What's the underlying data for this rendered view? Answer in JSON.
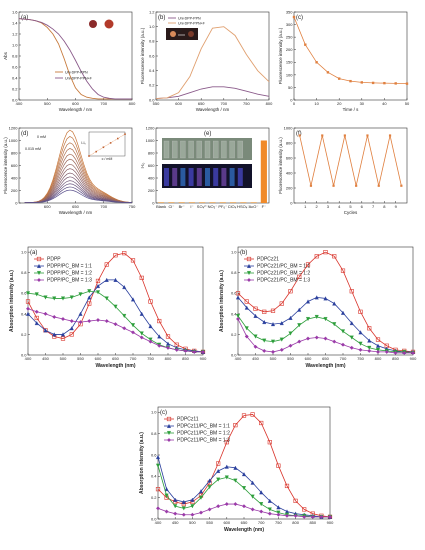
{
  "chart_data": [
    {
      "panel": "(a)",
      "type": "line",
      "xlabel": "Wavelength / nm",
      "ylabel": "Abs",
      "xlim": [
        400,
        800
      ],
      "ylim": [
        0,
        1.6
      ],
      "xticks": [
        400,
        500,
        600,
        700,
        800
      ],
      "yticks": [
        0.0,
        0.2,
        0.4,
        0.6,
        0.8,
        1.0,
        1.2,
        1.4,
        1.6
      ],
      "series": [
        {
          "name": "Uni-DPP-PPN",
          "color": "#c77a3c",
          "x": [
            400,
            420,
            440,
            460,
            480,
            500,
            520,
            540,
            560,
            580,
            600,
            620,
            640,
            660,
            680,
            700,
            720,
            740,
            760,
            780,
            800
          ],
          "y": [
            1.48,
            1.47,
            1.46,
            1.44,
            1.4,
            1.32,
            1.2,
            1.02,
            0.75,
            0.45,
            0.22,
            0.1,
            0.05,
            0.03,
            0.02,
            0.02,
            0.02,
            0.02,
            0.02,
            0.02,
            0.02
          ]
        },
        {
          "name": "Uni-DPP-PPN+F",
          "color": "#8a5a8a",
          "x": [
            400,
            420,
            440,
            460,
            480,
            500,
            520,
            540,
            560,
            580,
            600,
            620,
            640,
            660,
            680,
            700,
            720,
            740,
            760,
            780,
            800
          ],
          "y": [
            1.48,
            1.47,
            1.46,
            1.44,
            1.41,
            1.36,
            1.29,
            1.2,
            1.07,
            0.91,
            0.72,
            0.52,
            0.34,
            0.2,
            0.1,
            0.05,
            0.03,
            0.02,
            0.02,
            0.02,
            0.02
          ]
        }
      ]
    },
    {
      "panel": "(b)",
      "type": "line",
      "xlabel": "Wavelength / nm",
      "ylabel": "Fluorescence intensity (a.u.)",
      "xlim": [
        550,
        800
      ],
      "ylim": [
        0,
        1.2
      ],
      "xticks": [
        550,
        600,
        650,
        700,
        750,
        800
      ],
      "yticks": [
        0.0,
        0.2,
        0.4,
        0.6,
        0.8,
        1.0,
        1.2
      ],
      "series": [
        {
          "name": "Uni-DPP-PPN",
          "color": "#8a5a8a",
          "x": [
            550,
            575,
            600,
            625,
            650,
            675,
            700,
            725,
            750,
            775,
            800
          ],
          "y": [
            0.02,
            0.03,
            0.05,
            0.1,
            0.15,
            0.18,
            0.18,
            0.16,
            0.12,
            0.08,
            0.05
          ]
        },
        {
          "name": "Uni-DPP-PPN+F",
          "color": "#e0a070",
          "x": [
            550,
            575,
            600,
            625,
            650,
            675,
            700,
            725,
            750,
            775,
            800
          ],
          "y": [
            0.02,
            0.03,
            0.1,
            0.32,
            0.7,
            0.98,
            1.0,
            0.88,
            0.62,
            0.4,
            0.25
          ]
        }
      ],
      "annotations": [
        "F",
        "F"
      ]
    },
    {
      "panel": "(c)",
      "type": "scatter",
      "xlabel": "Time / s",
      "ylabel": "Fluorescence intensity (a.u.)",
      "xlim": [
        0,
        50
      ],
      "ylim": [
        0,
        350
      ],
      "xticks": [
        0,
        10,
        20,
        30,
        40,
        50
      ],
      "yticks": [
        0,
        50,
        100,
        150,
        200,
        250,
        300,
        350
      ],
      "series": [
        {
          "name": "",
          "color": "#e08040",
          "x": [
            0,
            5,
            10,
            15,
            20,
            25,
            30,
            35,
            40,
            45,
            50
          ],
          "y": [
            330,
            220,
            150,
            110,
            85,
            75,
            70,
            68,
            67,
            66,
            65
          ]
        }
      ]
    },
    {
      "panel": "(d)",
      "type": "line",
      "xlabel": "Wavelength / nm",
      "ylabel": "Fluorescence intensity (a.u.)",
      "xlim": [
        550,
        750
      ],
      "ylim": [
        0,
        1200
      ],
      "xticks": [
        600,
        650,
        700,
        750
      ],
      "yticks": [
        0,
        200,
        400,
        600,
        800,
        1000,
        1200
      ],
      "peak_x": 640,
      "series_peaks": [
        1150,
        1050,
        950,
        860,
        770,
        690,
        610,
        540,
        470,
        410,
        350,
        300,
        250,
        200
      ],
      "annotations": [
        "0 mM",
        "0.015 mM"
      ],
      "inset": {
        "xlabel": "c / mM",
        "ylabel": "I-I₀",
        "x": [
          0,
          0.003,
          0.006,
          0.009,
          0.012,
          0.015
        ],
        "y": [
          0,
          200,
          400,
          600,
          800,
          1000
        ],
        "xticks": [
          "0",
          "0.005",
          "0.010",
          "0.015"
        ]
      }
    },
    {
      "panel": "(e)",
      "type": "bar",
      "ylabel": "I-I₀",
      "categories": [
        "Blank",
        "Cl⁻",
        "Br⁻",
        "I⁻",
        "SO₄²⁻",
        "NO₃⁻",
        "PF₆⁻",
        "ClO₄⁻",
        "HSO₄⁻",
        "AcO⁻",
        "F⁻"
      ],
      "values": [
        15,
        15,
        15,
        15,
        15,
        15,
        15,
        15,
        15,
        15,
        1000
      ],
      "ylim": [
        0,
        1200
      ],
      "yticks": [
        0,
        200,
        400,
        600,
        800,
        1000,
        1200
      ]
    },
    {
      "panel": "(f)",
      "type": "line",
      "xlabel": "Cycles",
      "ylabel": "Fluorescence intensity (a.u.)",
      "xlim": [
        0,
        10
      ],
      "ylim": [
        0,
        1000
      ],
      "xticks": [
        1,
        2,
        3,
        4,
        5,
        6,
        7,
        8,
        9
      ],
      "yticks": [
        0,
        200,
        400,
        600,
        800,
        1000
      ],
      "series": [
        {
          "name": "",
          "color": "#e08040",
          "x": [
            0.5,
            1.5,
            2.5,
            3.5,
            4.5,
            5.5,
            6.5,
            7.5,
            8.5,
            9.5
          ],
          "y": [
            900,
            230,
            900,
            230,
            900,
            230,
            900,
            230,
            900,
            230
          ]
        }
      ]
    },
    {
      "panel": "(a)",
      "type": "line",
      "xlabel": "Wavelength (nm)",
      "ylabel": "Absorption intensity (a.u.)",
      "xlim": [
        400,
        900
      ],
      "ylim": [
        0,
        1.05
      ],
      "xticks": [
        400,
        450,
        500,
        550,
        600,
        650,
        700,
        750,
        800,
        850,
        900
      ],
      "yticks": [
        0.0,
        0.2,
        0.4,
        0.6,
        0.8,
        1.0
      ],
      "x": [
        400,
        425,
        450,
        475,
        500,
        525,
        550,
        575,
        600,
        625,
        650,
        675,
        700,
        725,
        750,
        775,
        800,
        825,
        850,
        875,
        900
      ],
      "series": [
        {
          "name": "PDPP",
          "color": "#d9342b",
          "marker": "square",
          "y": [
            0.52,
            0.36,
            0.24,
            0.18,
            0.16,
            0.2,
            0.3,
            0.5,
            0.72,
            0.88,
            0.97,
            0.99,
            0.92,
            0.75,
            0.52,
            0.33,
            0.18,
            0.1,
            0.06,
            0.04,
            0.03
          ]
        },
        {
          "name": "PDPP/PC_BM = 1:1",
          "color": "#2a3f9d",
          "marker": "triangle",
          "y": [
            0.4,
            0.31,
            0.24,
            0.2,
            0.2,
            0.26,
            0.4,
            0.56,
            0.67,
            0.73,
            0.73,
            0.66,
            0.54,
            0.4,
            0.28,
            0.18,
            0.11,
            0.07,
            0.05,
            0.04,
            0.03
          ]
        },
        {
          "name": "PDPP/PC_BM = 1:2",
          "color": "#2c9e3a",
          "marker": "triangle-down",
          "y": [
            0.6,
            0.59,
            0.56,
            0.55,
            0.55,
            0.56,
            0.59,
            0.62,
            0.61,
            0.55,
            0.47,
            0.38,
            0.29,
            0.21,
            0.15,
            0.1,
            0.07,
            0.05,
            0.04,
            0.03,
            0.03
          ]
        },
        {
          "name": "PDPP/PC_BM = 1:3",
          "color": "#9a3aa8",
          "marker": "diamond",
          "y": [
            0.45,
            0.42,
            0.4,
            0.37,
            0.35,
            0.33,
            0.32,
            0.33,
            0.34,
            0.33,
            0.3,
            0.26,
            0.22,
            0.17,
            0.13,
            0.09,
            0.07,
            0.05,
            0.04,
            0.03,
            0.03
          ]
        }
      ]
    },
    {
      "panel": "(b)",
      "type": "line",
      "xlabel": "Wavelength (nm)",
      "ylabel": "Absorption intensity (a.u.)",
      "xlim": [
        400,
        900
      ],
      "ylim": [
        0,
        1.05
      ],
      "xticks": [
        400,
        450,
        500,
        550,
        600,
        650,
        700,
        750,
        800,
        850,
        900
      ],
      "yticks": [
        0.0,
        0.2,
        0.4,
        0.6,
        0.8,
        1.0
      ],
      "x": [
        400,
        425,
        450,
        475,
        500,
        525,
        550,
        575,
        600,
        625,
        650,
        675,
        700,
        725,
        750,
        775,
        800,
        825,
        850,
        875,
        900
      ],
      "series": [
        {
          "name": "PDPCz21",
          "color": "#d9342b",
          "marker": "square",
          "y": [
            0.6,
            0.52,
            0.45,
            0.42,
            0.43,
            0.5,
            0.62,
            0.76,
            0.88,
            0.96,
            1.0,
            0.96,
            0.82,
            0.62,
            0.42,
            0.26,
            0.15,
            0.09,
            0.05,
            0.04,
            0.03
          ]
        },
        {
          "name": "PDPCz21/PC_BM = 1:1",
          "color": "#2a3f9d",
          "marker": "triangle",
          "y": [
            0.56,
            0.46,
            0.38,
            0.32,
            0.3,
            0.31,
            0.36,
            0.44,
            0.52,
            0.56,
            0.55,
            0.5,
            0.41,
            0.31,
            0.22,
            0.14,
            0.09,
            0.06,
            0.04,
            0.03,
            0.03
          ]
        },
        {
          "name": "PDPCz21/PC_BM = 1:2",
          "color": "#2c9e3a",
          "marker": "triangle-down",
          "y": [
            0.38,
            0.26,
            0.18,
            0.14,
            0.13,
            0.15,
            0.21,
            0.29,
            0.35,
            0.37,
            0.35,
            0.3,
            0.23,
            0.17,
            0.11,
            0.07,
            0.05,
            0.04,
            0.03,
            0.03,
            0.02
          ]
        },
        {
          "name": "PDPCz21/PC_BM = 1:3",
          "color": "#9a3aa8",
          "marker": "diamond",
          "y": [
            0.35,
            0.18,
            0.08,
            0.04,
            0.03,
            0.05,
            0.09,
            0.13,
            0.16,
            0.17,
            0.16,
            0.13,
            0.1,
            0.07,
            0.05,
            0.04,
            0.03,
            0.03,
            0.02,
            0.02,
            0.02
          ]
        }
      ]
    },
    {
      "panel": "(c)",
      "type": "line",
      "xlabel": "Wavelength (nm)",
      "ylabel": "Absorption intensity (a.u.)",
      "xlim": [
        400,
        900
      ],
      "ylim": [
        0,
        1.05
      ],
      "xticks": [
        400,
        450,
        500,
        550,
        600,
        650,
        700,
        750,
        800,
        850,
        900
      ],
      "yticks": [
        0.0,
        0.2,
        0.4,
        0.6,
        0.8,
        1.0
      ],
      "x": [
        400,
        425,
        450,
        475,
        500,
        525,
        550,
        575,
        600,
        625,
        650,
        675,
        700,
        725,
        750,
        775,
        800,
        825,
        850,
        875,
        900
      ],
      "series": [
        {
          "name": "PDPCz11",
          "color": "#d9342b",
          "marker": "square",
          "y": [
            0.28,
            0.2,
            0.16,
            0.14,
            0.16,
            0.22,
            0.34,
            0.52,
            0.72,
            0.88,
            0.97,
            0.98,
            0.9,
            0.72,
            0.5,
            0.31,
            0.17,
            0.09,
            0.05,
            0.03,
            0.02
          ]
        },
        {
          "name": "PDPCz11/PC_BM = 1:1",
          "color": "#2a3f9d",
          "marker": "triangle",
          "y": [
            0.58,
            0.28,
            0.18,
            0.16,
            0.18,
            0.26,
            0.36,
            0.45,
            0.49,
            0.48,
            0.42,
            0.34,
            0.25,
            0.17,
            0.11,
            0.07,
            0.05,
            0.04,
            0.03,
            0.02,
            0.02
          ]
        },
        {
          "name": "PDPCz11/PC_BM = 1:2",
          "color": "#2c9e3a",
          "marker": "triangle-down",
          "y": [
            0.5,
            0.22,
            0.12,
            0.1,
            0.12,
            0.2,
            0.3,
            0.37,
            0.39,
            0.36,
            0.29,
            0.21,
            0.14,
            0.09,
            0.06,
            0.04,
            0.03,
            0.03,
            0.02,
            0.02,
            0.02
          ]
        },
        {
          "name": "PDPCz11/PC_BM = 1:3",
          "color": "#9a3aa8",
          "marker": "diamond",
          "y": [
            0.1,
            0.07,
            0.05,
            0.04,
            0.04,
            0.06,
            0.09,
            0.12,
            0.14,
            0.14,
            0.12,
            0.09,
            0.07,
            0.05,
            0.04,
            0.03,
            0.03,
            0.02,
            0.02,
            0.02,
            0.02
          ]
        }
      ]
    }
  ]
}
